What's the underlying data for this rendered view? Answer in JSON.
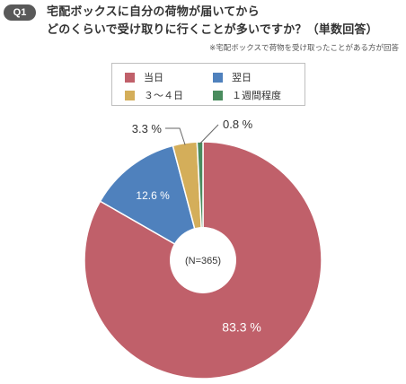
{
  "header": {
    "badge": "Q1",
    "title": "宅配ボックスに自分の荷物が届いてから\nどのくらいで受け取りに行くことが多いですか？（単数回答）",
    "note": "※宅配ボックスで荷物を受け取ったことがある方が回答"
  },
  "chart_data": {
    "type": "pie",
    "variant": "donut",
    "center_label": "(N=365)",
    "start_angle_deg": 0,
    "direction": "clockwise",
    "legend_position": "top",
    "slices": [
      {
        "label": "当日",
        "value": 83.3,
        "value_label": "83.3 %",
        "color": "#c0606a"
      },
      {
        "label": "翌日",
        "value": 12.6,
        "value_label": "12.6 %",
        "color": "#4f81bd"
      },
      {
        "label": "３～４日",
        "value": 3.3,
        "value_label": "3.3 %",
        "color": "#d4ae5a"
      },
      {
        "label": "１週間程度",
        "value": 0.8,
        "value_label": "0.8 %",
        "color": "#4a8c5e"
      }
    ]
  }
}
